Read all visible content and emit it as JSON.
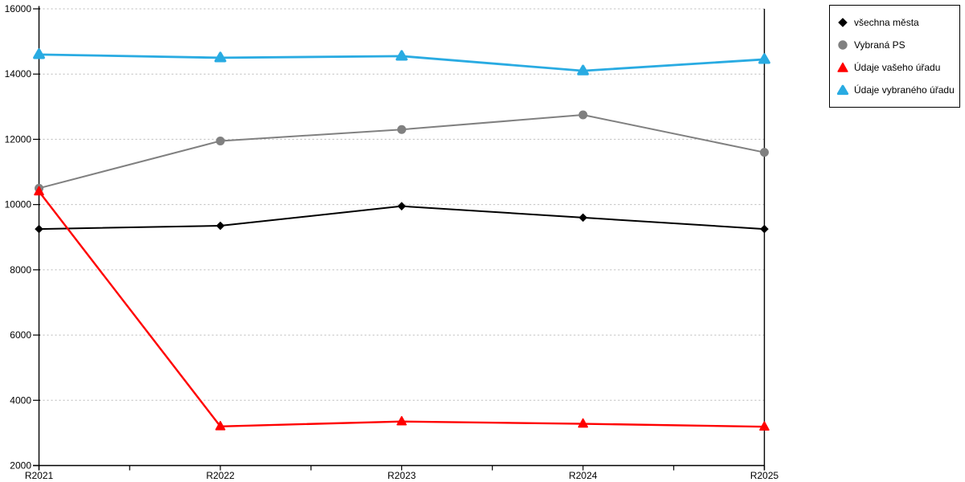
{
  "chart_data": {
    "type": "line",
    "title": "",
    "xlabel": "",
    "ylabel": "",
    "categories": [
      "R2021",
      "R2022",
      "R2023",
      "R2024",
      "R2025"
    ],
    "series": [
      {
        "name": "všechna města",
        "color": "#000000",
        "marker": "diamond",
        "values": [
          9250,
          9350,
          9950,
          9600,
          9250
        ]
      },
      {
        "name": "Vybraná PS",
        "color": "#808080",
        "marker": "circle",
        "values": [
          10500,
          11950,
          12300,
          12750,
          11600
        ]
      },
      {
        "name": "Údaje vašeho úřadu",
        "color": "#ff0000",
        "marker": "triangle",
        "values": [
          10400,
          3200,
          3350,
          3280,
          3190
        ]
      },
      {
        "name": "Údaje vybraného úřadu",
        "color": "#29abe2",
        "marker": "triangle-round",
        "values": [
          14600,
          14500,
          14550,
          14100,
          14450
        ]
      }
    ],
    "ylim": [
      2000,
      16000
    ],
    "ytick_step": 2000,
    "ytick_labels": [
      "2000",
      "4000",
      "6000",
      "8000",
      "10000",
      "12000",
      "14000",
      "16000"
    ],
    "grid": "horizontal-dotted",
    "gridline_color": "#b8b8b8",
    "axis_color": "#000000",
    "legend_position": "top-right"
  }
}
